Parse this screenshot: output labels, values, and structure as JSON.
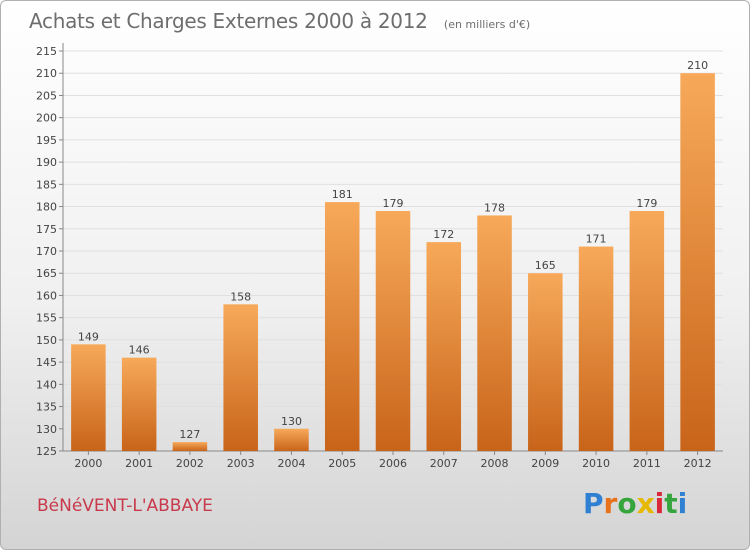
{
  "header": {
    "title": "Achats et Charges Externes 2000 à 2012",
    "unit": "(en milliers d'€)"
  },
  "footer": {
    "commune": "BéNéVENT-L'ABBAYE",
    "logo": {
      "text": "Proxiti",
      "letter_colors": [
        "#2f7fd3",
        "#e8721c",
        "#37a53d",
        "#e6b800",
        "#d9283a",
        "#37a53d",
        "#2f7fd3"
      ]
    }
  },
  "colors": {
    "bar_light": "#f7a959",
    "bar_dark": "#c8641a",
    "grid": "#e0e0e0",
    "axis_text": "#444444"
  },
  "chart_data": {
    "type": "bar",
    "title": "Achats et Charges Externes 2000 à 2012",
    "subtitle": "(en milliers d'€)",
    "categories": [
      "2000",
      "2001",
      "2002",
      "2003",
      "2004",
      "2005",
      "2006",
      "2007",
      "2008",
      "2009",
      "2010",
      "2011",
      "2012"
    ],
    "values": [
      149,
      146,
      127,
      158,
      130,
      181,
      179,
      172,
      178,
      165,
      171,
      179,
      210
    ],
    "ylim": [
      125,
      215
    ],
    "yticks": [
      125,
      130,
      135,
      140,
      145,
      150,
      155,
      160,
      165,
      170,
      175,
      180,
      185,
      190,
      195,
      200,
      205,
      210,
      215
    ],
    "grid": true,
    "data_labels": true
  }
}
